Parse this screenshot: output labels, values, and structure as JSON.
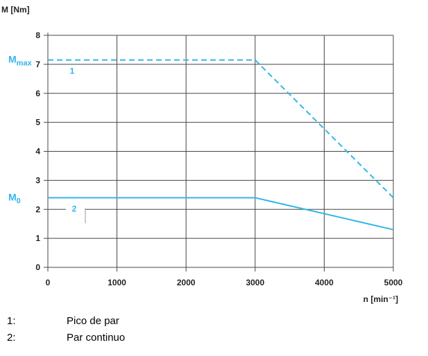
{
  "chart_data": {
    "type": "line",
    "ylabel": "M [Nm]",
    "xlabel": "n [min⁻¹]",
    "xlim": [
      0,
      5000
    ],
    "ylim": [
      0,
      8
    ],
    "x_ticks": [
      "0",
      "1000",
      "2000",
      "3000",
      "4000",
      "5000"
    ],
    "y_ticks": [
      "0",
      "1",
      "2",
      "3",
      "4",
      "5",
      "6",
      "7",
      "8"
    ],
    "grid": true,
    "series": [
      {
        "id": "1",
        "style": "dashed",
        "color": "#33b5e8",
        "x": [
          0,
          3000,
          5000
        ],
        "y": [
          7.15,
          7.15,
          2.4
        ]
      },
      {
        "id": "2",
        "style": "solid",
        "color": "#33b5e8",
        "x": [
          0,
          3000,
          5000
        ],
        "y": [
          2.4,
          2.4,
          1.3
        ]
      }
    ],
    "annotations": [
      {
        "text": "M",
        "sub": "max",
        "y": 7.15
      },
      {
        "text": "M",
        "sub": "0",
        "y": 2.4
      }
    ]
  },
  "legend": [
    {
      "num": "1:",
      "text": "Pico de par"
    },
    {
      "num": "2:",
      "text": "Par continuo"
    }
  ],
  "colors": {
    "accent": "#33b5e8",
    "grid": "#444444"
  }
}
